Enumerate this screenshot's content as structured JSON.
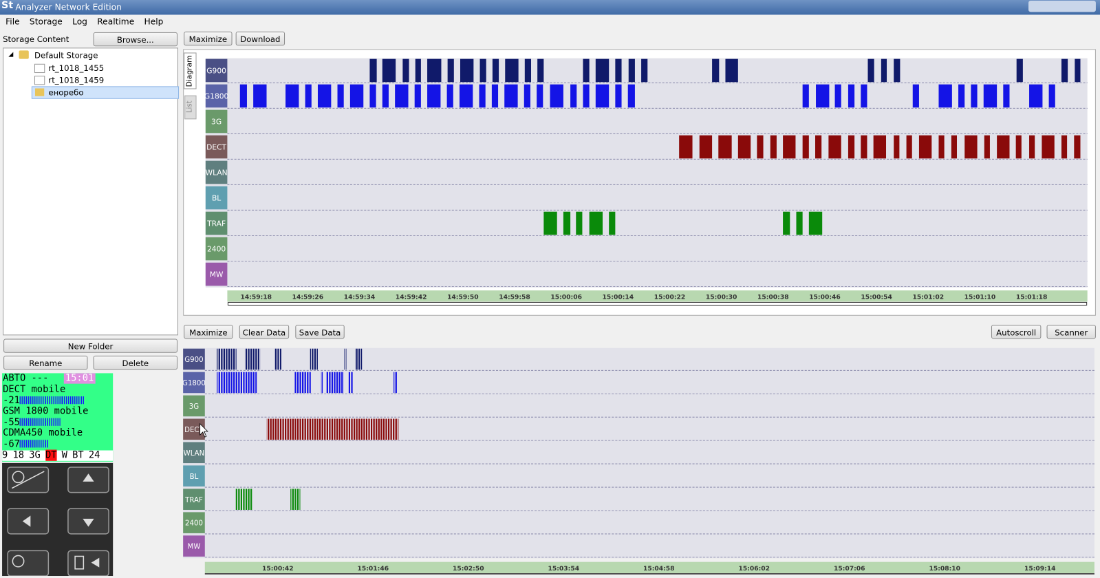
{
  "window": {
    "title": "Analyzer Network Edition"
  },
  "menu": [
    "File",
    "Storage",
    "Log",
    "Realtime",
    "Help"
  ],
  "storage": {
    "label": "Storage Content",
    "browse": "Browse...",
    "tree": [
      "Default Storage",
      "rt_1018_1455",
      "rt_1018_1459",
      "енорeбо"
    ],
    "buttons": [
      "New Folder",
      "Rename",
      "Delete"
    ]
  },
  "device": {
    "mode": "АВТО ---",
    "clock": "15:01",
    "lines": [
      "DECT mobile",
      "-21",
      "GSM 1800 mobile",
      "-55",
      "CDMA450 mobile",
      "-67"
    ],
    "status": [
      "9",
      "18",
      "3G",
      "DT",
      "W",
      "BT",
      "24"
    ]
  },
  "top_panel": {
    "buttons": [
      "Maximize",
      "Download"
    ],
    "tabs": [
      "Diagram",
      "List"
    ],
    "rows": [
      "G900",
      "G1800",
      "3G",
      "DECT",
      "WLAN",
      "BL",
      "TRAF",
      "2400",
      "MW"
    ],
    "times": [
      "14:59:18",
      "14:59:26",
      "14:59:34",
      "14:59:42",
      "14:59:50",
      "14:59:58",
      "15:00:06",
      "15:00:14",
      "15:00:22",
      "15:00:30",
      "15:00:38",
      "15:00:46",
      "15:00:54",
      "15:01:02",
      "15:01:10",
      "15:01:18"
    ]
  },
  "bottom_panel": {
    "buttons": [
      "Maximize",
      "Clear Data",
      "Save Data"
    ],
    "right_buttons": [
      "Autoscroll",
      "Scanner"
    ],
    "rows": [
      "G900",
      "G1800",
      "3G",
      "DECT",
      "WLAN",
      "BL",
      "TRAF",
      "2400",
      "MW"
    ],
    "times": [
      "15:00:42",
      "15:01:46",
      "15:02:50",
      "15:03:54",
      "15:04:58",
      "15:06:02",
      "15:07:06",
      "15:08:10",
      "15:09:14"
    ]
  }
}
